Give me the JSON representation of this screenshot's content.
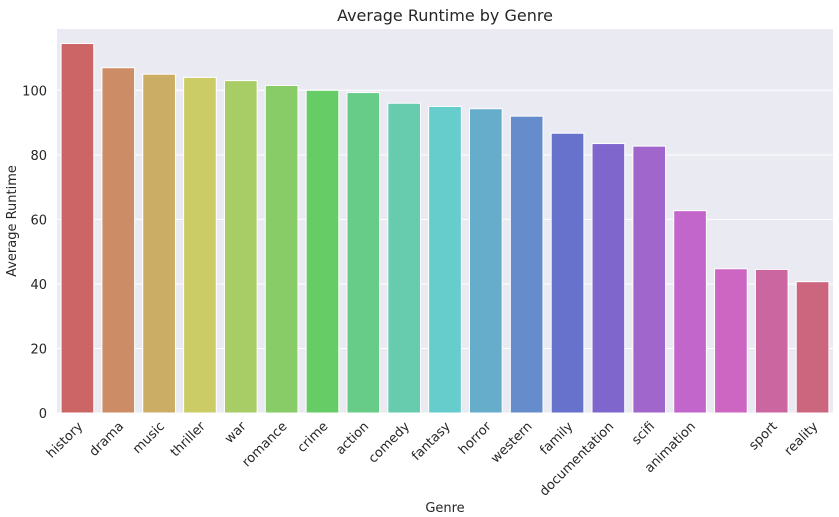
{
  "chart_data": {
    "type": "bar",
    "title": "Average Runtime by Genre",
    "xlabel": "Genre",
    "ylabel": "Average Runtime",
    "ylim": [
      0,
      119
    ],
    "yticks": [
      0,
      20,
      40,
      60,
      80,
      100
    ],
    "grid": true,
    "background": "#eaeaf2",
    "categories": [
      "history",
      "drama",
      "music",
      "thriller",
      "war",
      "romance",
      "crime",
      "action",
      "comedy",
      "fantasy",
      "horror",
      "western",
      "family",
      "documentation",
      "scifi",
      "animation",
      "",
      "sport",
      "reality"
    ],
    "values": [
      114.5,
      107,
      105,
      104,
      103,
      101.5,
      100,
      99.3,
      96,
      95,
      94.3,
      92,
      86.7,
      83.5,
      82.7,
      62.7,
      44.7,
      44.5,
      40.7
    ],
    "colors": [
      "#cc6666",
      "#cc8c66",
      "#ccad66",
      "#cccc66",
      "#a8cc66",
      "#87cc66",
      "#66cc66",
      "#66cc87",
      "#66ccad",
      "#66cccc",
      "#66adcc",
      "#668ccc",
      "#6672cc",
      "#7f66cc",
      "#a066cc",
      "#c266cc",
      "#cc66c2",
      "#cc66a0",
      "#cc667f"
    ]
  }
}
